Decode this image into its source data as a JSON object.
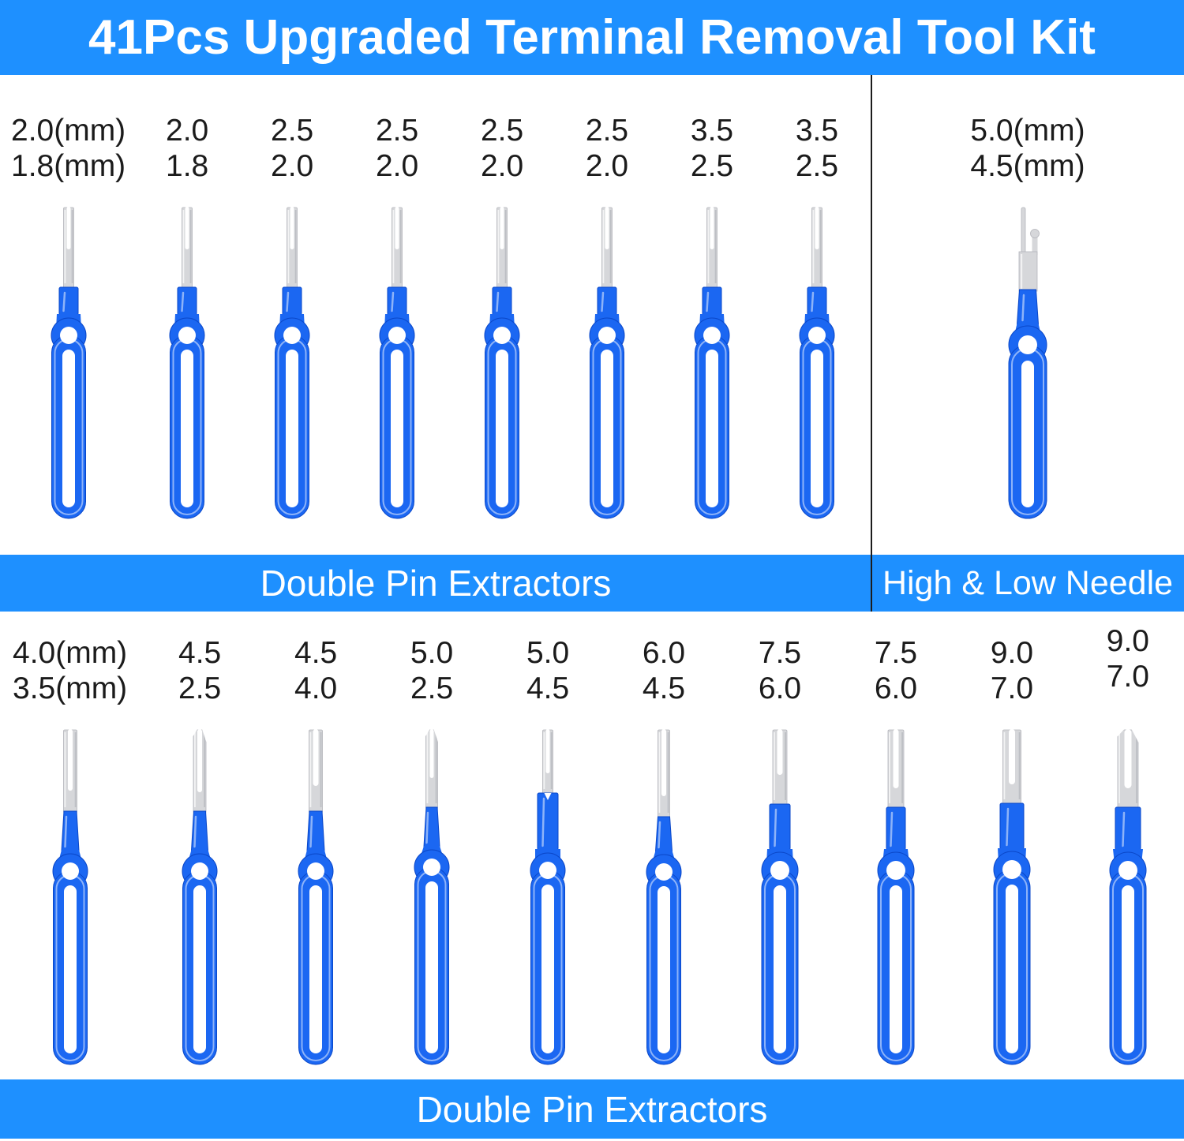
{
  "header": {
    "title": "41Pcs Upgraded Terminal Removal Tool Kit"
  },
  "colors": {
    "page_bg": "#FFFFFF",
    "banner_blue": "#1E90FF",
    "banner_text": "#FFFFFF",
    "tool_blue": "#1B67F2",
    "tool_blue_dark": "#0A47C8",
    "metal_gray": "#D6D7DA",
    "label_text": "#1B1B1B",
    "divider": "#1C1C1C"
  },
  "sections": {
    "top_left": {
      "banner_label": "Double Pin Extractors",
      "tools": [
        {
          "name": "double-pin-extractor",
          "size_top": "2.0(mm)",
          "size_bottom": "1.8(mm)",
          "tip": {}
        },
        {
          "name": "double-pin-extractor",
          "size_top": "2.0",
          "size_bottom": "1.8",
          "tip": {}
        },
        {
          "name": "double-pin-extractor",
          "size_top": "2.5",
          "size_bottom": "2.0",
          "tip": {}
        },
        {
          "name": "double-pin-extractor",
          "size_top": "2.5",
          "size_bottom": "2.0",
          "tip": {}
        },
        {
          "name": "double-pin-extractor",
          "size_top": "2.5",
          "size_bottom": "2.0",
          "tip": {}
        },
        {
          "name": "double-pin-extractor",
          "size_top": "2.5",
          "size_bottom": "2.0",
          "tip": {}
        },
        {
          "name": "double-pin-extractor",
          "size_top": "3.5",
          "size_bottom": "2.5",
          "tip": {}
        },
        {
          "name": "double-pin-extractor",
          "size_top": "3.5",
          "size_bottom": "2.5",
          "tip": {}
        }
      ]
    },
    "top_right": {
      "banner_label": "High & Low Needle",
      "tools": [
        {
          "name": "high-low-needle-extractor",
          "size_top": "5.0(mm)",
          "size_bottom": "4.5(mm)",
          "tip": {
            "style": "hook",
            "bw": 22,
            "bh": 106,
            "cw": 21,
            "ch": 42,
            "lw": 48,
            "er": 24
          }
        }
      ]
    },
    "bottom": {
      "banner_label": "Double Pin Extractors",
      "tools": [
        {
          "name": "double-pin-extractor",
          "size_top": "4.0(mm)",
          "size_bottom": "3.5(mm)",
          "tip": {
            "bw": 17,
            "sd": 78,
            "cw": 16
          }
        },
        {
          "name": "double-pin-extractor",
          "size_top": "4.5",
          "size_bottom": "2.5",
          "tip": {
            "bw": 16,
            "sd": 80,
            "bevel": 1,
            "cw": 15
          }
        },
        {
          "name": "double-pin-extractor",
          "size_top": "4.5",
          "size_bottom": "4.0",
          "tip": {
            "bw": 17,
            "sw": 7,
            "sd": 72,
            "cw": 16
          }
        },
        {
          "name": "double-pin-extractor",
          "size_top": "5.0",
          "size_bottom": "2.5",
          "tip": {
            "bw": 15,
            "sw": 5,
            "sd": 62,
            "bh": 100,
            "bevel": 1,
            "cw": 14
          }
        },
        {
          "name": "double-pin-extractor",
          "size_top": "5.0",
          "size_bottom": "4.5",
          "tip": {
            "bw": 13,
            "sw": 5,
            "bh": 82,
            "sd": 56,
            "cw": 26,
            "ch": 70,
            "notch": 1
          }
        },
        {
          "name": "double-pin-extractor",
          "size_top": "6.0",
          "size_bottom": "4.5",
          "tip": {
            "bw": 15,
            "sw": 6,
            "bh": 112,
            "sd": 85,
            "cw": 15,
            "ch": 42
          }
        },
        {
          "name": "double-pin-extractor",
          "size_top": "7.5",
          "size_bottom": "6.0",
          "tip": {
            "bw": 18,
            "sw": 7,
            "bh": 96,
            "sd": 58,
            "cw": 26,
            "ch": 56,
            "lw": 46,
            "er": 23
          }
        },
        {
          "name": "double-pin-extractor",
          "size_top": "7.5",
          "size_bottom": "6.0",
          "tip": {
            "bw": 20,
            "sw": 7,
            "bh": 100,
            "sd": 75,
            "cw": 24,
            "ch": 52,
            "lw": 46,
            "er": 23
          }
        },
        {
          "name": "double-pin-extractor",
          "size_top": "9.0",
          "size_bottom": "7.0",
          "tip": {
            "bw": 23,
            "sw": 8,
            "bh": 95,
            "sd": 70,
            "cw": 30,
            "ch": 56,
            "lw": 46,
            "er": 23
          }
        },
        {
          "name": "double-pin-extractor",
          "size_top": "9.0",
          "size_bottom": "7.0",
          "raise_label": 1,
          "tip": {
            "bw": 26,
            "sw": 9,
            "bh": 100,
            "sd": 75,
            "bevel": 1,
            "cw": 32,
            "ch": 52,
            "lw": 46,
            "er": 23
          }
        }
      ]
    }
  }
}
